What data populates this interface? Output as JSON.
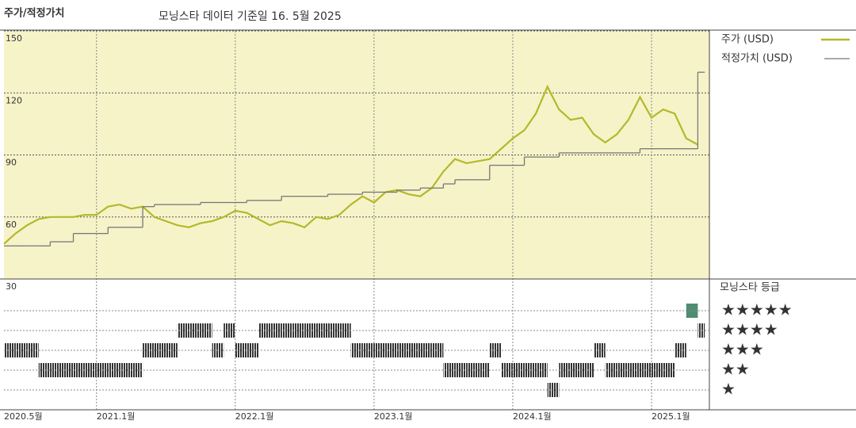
{
  "chart_data": {
    "type": "line",
    "title": "주가/적정가치",
    "subtitle": "모닝스타 데이터 기준일 16. 5월 2025",
    "x": [
      "2020-05",
      "2020-06",
      "2020-07",
      "2020-08",
      "2020-09",
      "2020-10",
      "2020-11",
      "2020-12",
      "2021-01",
      "2021-02",
      "2021-03",
      "2021-04",
      "2021-05",
      "2021-06",
      "2021-07",
      "2021-08",
      "2021-09",
      "2021-10",
      "2021-11",
      "2021-12",
      "2022-01",
      "2022-02",
      "2022-03",
      "2022-04",
      "2022-05",
      "2022-06",
      "2022-07",
      "2022-08",
      "2022-09",
      "2022-10",
      "2022-11",
      "2022-12",
      "2023-01",
      "2023-02",
      "2023-03",
      "2023-04",
      "2023-05",
      "2023-06",
      "2023-07",
      "2023-08",
      "2023-09",
      "2023-10",
      "2023-11",
      "2023-12",
      "2024-01",
      "2024-02",
      "2024-03",
      "2024-04",
      "2024-05",
      "2024-06",
      "2024-07",
      "2024-08",
      "2024-09",
      "2024-10",
      "2024-11",
      "2024-12",
      "2025-01",
      "2025-02",
      "2025-03",
      "2025-04",
      "2025-05"
    ],
    "series": [
      {
        "name": "주가 (USD)",
        "color": "#b4b82a",
        "values": [
          47,
          52,
          56,
          59,
          60,
          60,
          60,
          61,
          61,
          65,
          66,
          64,
          65,
          60,
          58,
          56,
          55,
          57,
          58,
          60,
          63,
          62,
          59,
          56,
          58,
          57,
          55,
          60,
          59,
          61,
          66,
          70,
          67,
          72,
          73,
          71,
          70,
          74,
          82,
          88,
          86,
          87,
          88,
          93,
          98,
          102,
          110,
          123,
          112,
          107,
          108,
          100,
          96,
          100,
          107,
          118,
          108,
          112,
          110,
          98,
          95
        ]
      },
      {
        "name": "적정가치 (USD)",
        "color": "#777777",
        "step": true,
        "values": [
          46,
          46,
          46,
          46,
          48,
          48,
          52,
          52,
          52,
          55,
          55,
          55,
          65,
          66,
          66,
          66,
          66,
          67,
          67,
          67,
          67,
          68,
          68,
          68,
          70,
          70,
          70,
          70,
          71,
          71,
          71,
          72,
          72,
          72,
          73,
          73,
          74,
          74,
          76,
          78,
          78,
          78,
          85,
          85,
          85,
          89,
          89,
          89,
          91,
          91,
          91,
          91,
          91,
          91,
          91,
          93,
          93,
          93,
          93,
          93,
          130
        ]
      }
    ],
    "xlim": [
      "2020-05",
      "2025-06"
    ],
    "xticks": [
      {
        "value": "2020-05",
        "label": "2020.5월"
      },
      {
        "value": "2021-01",
        "label": "2021.1월"
      },
      {
        "value": "2022-01",
        "label": "2022.1월"
      },
      {
        "value": "2023-01",
        "label": "2023.1월"
      },
      {
        "value": "2024-01",
        "label": "2024.1월"
      },
      {
        "value": "2025-01",
        "label": "2025.1월"
      }
    ],
    "ylim": [
      30,
      150
    ],
    "yticks": [
      150,
      120,
      90,
      60,
      30
    ],
    "grid": true,
    "ratings": {
      "title": "모닝스타 등급",
      "levels": [
        "★",
        "★★",
        "★★★",
        "★★★★",
        "★★★★★"
      ],
      "colors": [
        "#333333",
        "#333333",
        "#333333",
        "#333333",
        "#4f8c72"
      ],
      "values": [
        3,
        3,
        3,
        2,
        2,
        2,
        2,
        2,
        2,
        2,
        2,
        2,
        3,
        3,
        3,
        4,
        4,
        4,
        3,
        4,
        3,
        3,
        4,
        4,
        4,
        4,
        4,
        4,
        4,
        4,
        3,
        3,
        3,
        3,
        3,
        3,
        3,
        3,
        2,
        2,
        2,
        2,
        3,
        2,
        2,
        2,
        2,
        1,
        2,
        2,
        2,
        3,
        2,
        2,
        2,
        2,
        2,
        2,
        3,
        5,
        4
      ]
    }
  }
}
